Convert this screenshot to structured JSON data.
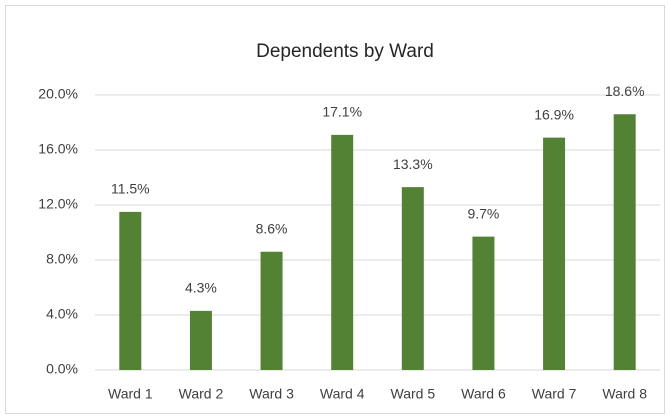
{
  "chart_data": {
    "type": "bar",
    "title": "Dependents by Ward",
    "categories": [
      "Ward 1",
      "Ward 2",
      "Ward 3",
      "Ward 4",
      "Ward 5",
      "Ward 6",
      "Ward 7",
      "Ward 8"
    ],
    "values": [
      11.5,
      4.3,
      8.6,
      17.1,
      13.3,
      9.7,
      16.9,
      18.6
    ],
    "value_labels": [
      "11.5%",
      "4.3%",
      "8.6%",
      "17.1%",
      "13.3%",
      "9.7%",
      "16.9%",
      "18.6%"
    ],
    "color": "#548235",
    "ylim": [
      0,
      20
    ],
    "yticks": [
      {
        "value": 0,
        "label": "0.0%"
      },
      {
        "value": 4,
        "label": "4.0%"
      },
      {
        "value": 8,
        "label": "8.0%"
      },
      {
        "value": 12,
        "label": "12.0%"
      },
      {
        "value": 16,
        "label": "16.0%"
      },
      {
        "value": 20,
        "label": "20.0%"
      }
    ],
    "grid": true
  }
}
